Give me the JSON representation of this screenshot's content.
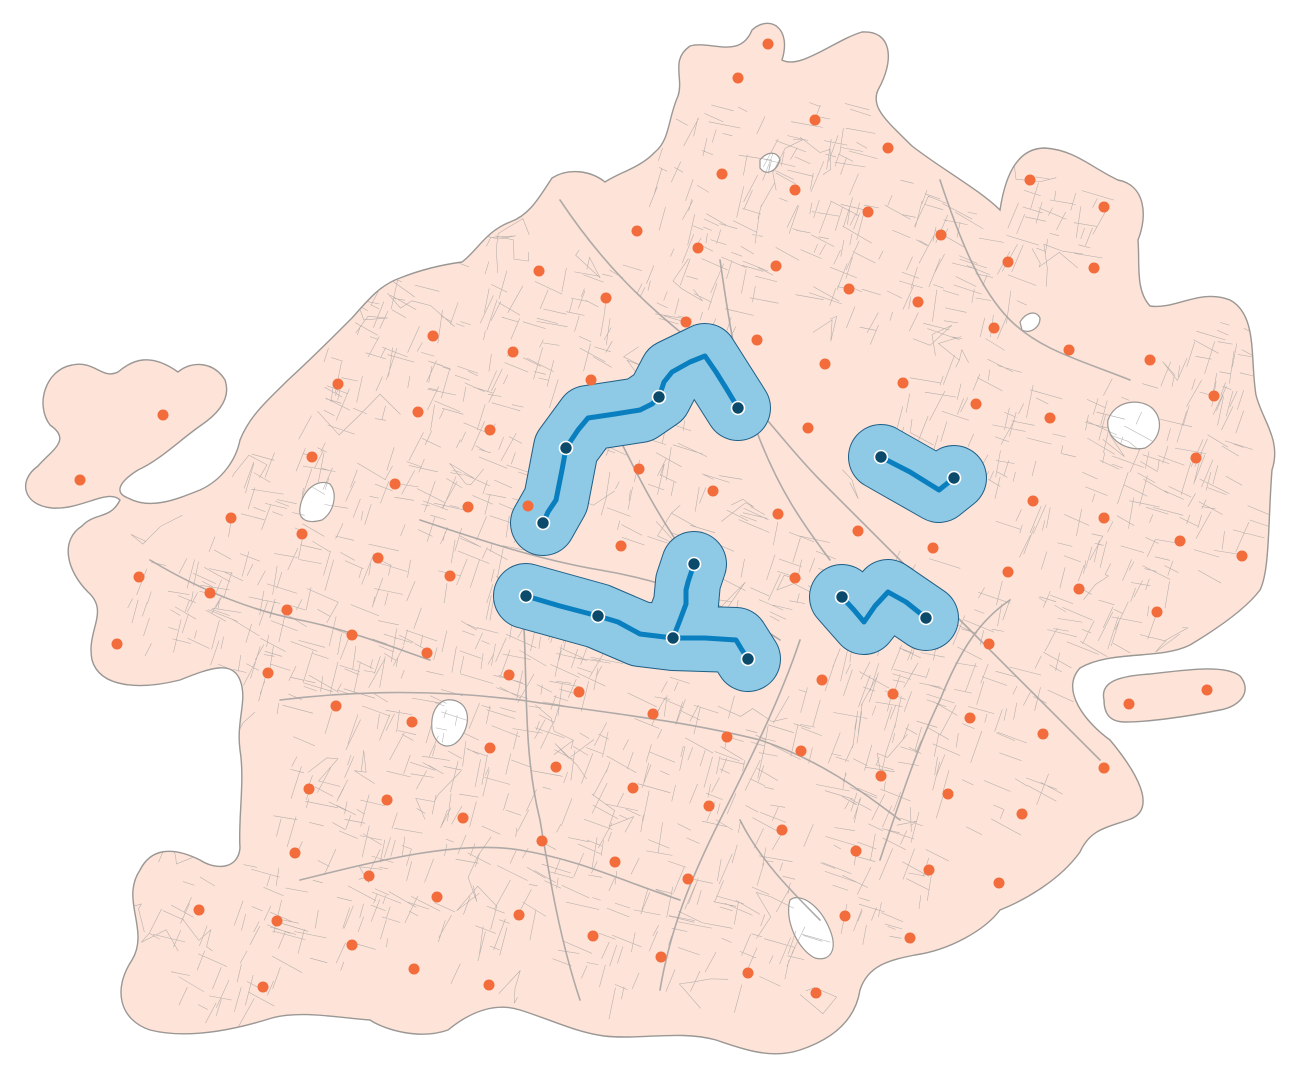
{
  "colors": {
    "coverage_fill": "#fde3d8",
    "coverage_stroke": "#9a9794",
    "street": "#a7a3a2",
    "major_road": "#9b9897",
    "station": "#f26d3b",
    "route_buffer_fill": "#8ecae6",
    "route_buffer_stroke": "#1f5f86",
    "route_line": "#0a7fbf",
    "stop_fill": "#0b4a6b",
    "stop_stroke": "#ffffff"
  },
  "icons": {
    "station": "circle-marker",
    "stop": "circle-marker"
  }
}
